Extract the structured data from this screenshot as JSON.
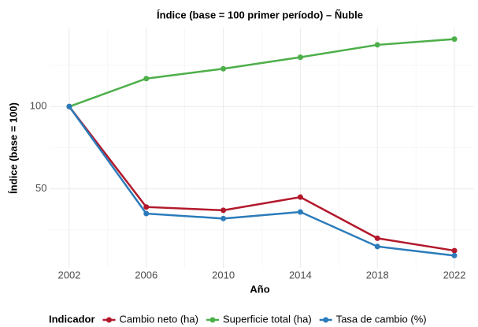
{
  "chart_data": {
    "type": "line",
    "title": "Índice (base = 100 primer período) – Ñuble",
    "x_label": "Año",
    "y_label": "Índice (base = 100)",
    "x": [
      2002,
      2006,
      2010,
      2014,
      2018,
      2022
    ],
    "series": [
      {
        "name": "Cambio neto (ha)",
        "color": "#b2182b",
        "values": [
          100,
          39,
          37,
          45,
          20,
          12.5
        ]
      },
      {
        "name": "Superficie total (ha)",
        "color": "#4daf4a",
        "values": [
          100,
          117,
          123,
          130,
          137.5,
          141
        ]
      },
      {
        "name": "Tasa de cambio (%)",
        "color": "#2b7bba",
        "values": [
          100,
          35,
          32,
          36,
          15,
          9.5
        ]
      }
    ],
    "xlim": [
      2001,
      2023
    ],
    "xticks": [
      2002,
      2006,
      2010,
      2014,
      2018,
      2022
    ],
    "xminor": [
      2004,
      2008,
      2012,
      2016,
      2020
    ],
    "ylim": [
      2,
      148
    ],
    "yticks": [
      50,
      100
    ],
    "yminor": [
      25,
      75,
      125
    ],
    "grid": true,
    "legend_title": "Indicador",
    "legend_position": "bottom"
  }
}
